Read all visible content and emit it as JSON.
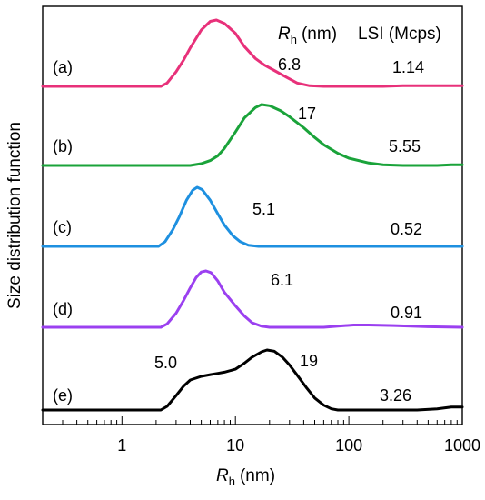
{
  "chart_data": {
    "type": "line",
    "x_scale": "log",
    "xlim": [
      0.2,
      1000
    ],
    "xlabel_main": "R",
    "xlabel_sub": "h",
    "xlabel_unit": "(nm)",
    "ylabel": "Size distribution function",
    "x_tick_labels": [
      "1",
      "10",
      "100",
      "1000"
    ],
    "x_ticks": [
      1,
      10,
      100,
      1000
    ],
    "header": {
      "rh_main": "R",
      "rh_sub": "h",
      "rh_unit": "(nm)",
      "lsi": "LSI (Mcps)"
    },
    "grid": false,
    "series": [
      {
        "label": "(a)",
        "color": "#e8317a",
        "rh_text": "6.8",
        "lsi_text": "1.14",
        "points": [
          [
            0.2,
            0
          ],
          [
            2.2,
            0
          ],
          [
            2.5,
            0.05
          ],
          [
            3,
            0.22
          ],
          [
            3.5,
            0.4
          ],
          [
            4,
            0.58
          ],
          [
            5,
            0.85
          ],
          [
            6,
            0.98
          ],
          [
            6.8,
            1
          ],
          [
            8,
            0.95
          ],
          [
            10,
            0.8
          ],
          [
            12,
            0.6
          ],
          [
            15,
            0.42
          ],
          [
            18,
            0.32
          ],
          [
            22,
            0.24
          ],
          [
            28,
            0.14
          ],
          [
            35,
            0.05
          ],
          [
            45,
            0.01
          ],
          [
            60,
            0
          ],
          [
            200,
            0
          ],
          [
            300,
            0.01
          ],
          [
            600,
            0.01
          ],
          [
            1000,
            0.01
          ]
        ]
      },
      {
        "label": "(b)",
        "color": "#1aa33a",
        "rh_text": "17",
        "lsi_text": "5.55",
        "points": [
          [
            0.2,
            0
          ],
          [
            4,
            0
          ],
          [
            5,
            0.03
          ],
          [
            6,
            0.08
          ],
          [
            7,
            0.16
          ],
          [
            8,
            0.28
          ],
          [
            10,
            0.55
          ],
          [
            12,
            0.78
          ],
          [
            15,
            0.95
          ],
          [
            17,
            1
          ],
          [
            20,
            0.98
          ],
          [
            25,
            0.9
          ],
          [
            30,
            0.8
          ],
          [
            40,
            0.62
          ],
          [
            50,
            0.46
          ],
          [
            60,
            0.34
          ],
          [
            80,
            0.2
          ],
          [
            100,
            0.12
          ],
          [
            150,
            0.04
          ],
          [
            200,
            0.01
          ],
          [
            300,
            0
          ],
          [
            600,
            0
          ],
          [
            800,
            0.01
          ],
          [
            1000,
            0.01
          ]
        ]
      },
      {
        "label": "(c)",
        "color": "#1e90e0",
        "rh_text": "5.1",
        "lsi_text": "0.52",
        "points": [
          [
            0.2,
            0
          ],
          [
            2.1,
            0
          ],
          [
            2.4,
            0.08
          ],
          [
            2.8,
            0.28
          ],
          [
            3.2,
            0.5
          ],
          [
            3.7,
            0.78
          ],
          [
            4.2,
            0.95
          ],
          [
            4.6,
            1
          ],
          [
            5.1,
            0.96
          ],
          [
            6,
            0.78
          ],
          [
            7,
            0.55
          ],
          [
            8,
            0.36
          ],
          [
            9.5,
            0.18
          ],
          [
            11,
            0.08
          ],
          [
            13,
            0.02
          ],
          [
            16,
            0
          ],
          [
            1000,
            0
          ]
        ]
      },
      {
        "label": "(d)",
        "color": "#9b40f0",
        "rh_text": "6.1",
        "lsi_text": "0.91",
        "points": [
          [
            0.2,
            0
          ],
          [
            2.2,
            0
          ],
          [
            2.5,
            0.06
          ],
          [
            3,
            0.25
          ],
          [
            3.5,
            0.48
          ],
          [
            4,
            0.7
          ],
          [
            4.5,
            0.88
          ],
          [
            5,
            0.98
          ],
          [
            5.5,
            1
          ],
          [
            6.1,
            0.97
          ],
          [
            7,
            0.82
          ],
          [
            8,
            0.62
          ],
          [
            10,
            0.38
          ],
          [
            12,
            0.2
          ],
          [
            14,
            0.08
          ],
          [
            17,
            0.02
          ],
          [
            20,
            0
          ],
          [
            60,
            0
          ],
          [
            80,
            0.02
          ],
          [
            110,
            0.04
          ],
          [
            150,
            0.04
          ],
          [
            250,
            0.03
          ],
          [
            500,
            0.01
          ],
          [
            1000,
            0
          ]
        ]
      },
      {
        "label": "(e)",
        "color": "#000000",
        "rh_text": "5.0",
        "lsi_text": "3.26",
        "points": [
          [
            0.2,
            0
          ],
          [
            2.2,
            0
          ],
          [
            2.5,
            0.06
          ],
          [
            3,
            0.24
          ],
          [
            3.5,
            0.4
          ],
          [
            4,
            0.5
          ],
          [
            5,
            0.56
          ],
          [
            6,
            0.59
          ],
          [
            7,
            0.61
          ],
          [
            8,
            0.63
          ],
          [
            10,
            0.68
          ],
          [
            12,
            0.78
          ],
          [
            14,
            0.88
          ],
          [
            17,
            0.97
          ],
          [
            19,
            1
          ],
          [
            22,
            0.98
          ],
          [
            26,
            0.88
          ],
          [
            30,
            0.75
          ],
          [
            35,
            0.58
          ],
          [
            42,
            0.38
          ],
          [
            50,
            0.2
          ],
          [
            60,
            0.08
          ],
          [
            70,
            0.02
          ],
          [
            80,
            0
          ],
          [
            400,
            0
          ],
          [
            600,
            0.02
          ],
          [
            800,
            0.05
          ],
          [
            1000,
            0.05
          ]
        ]
      }
    ]
  }
}
